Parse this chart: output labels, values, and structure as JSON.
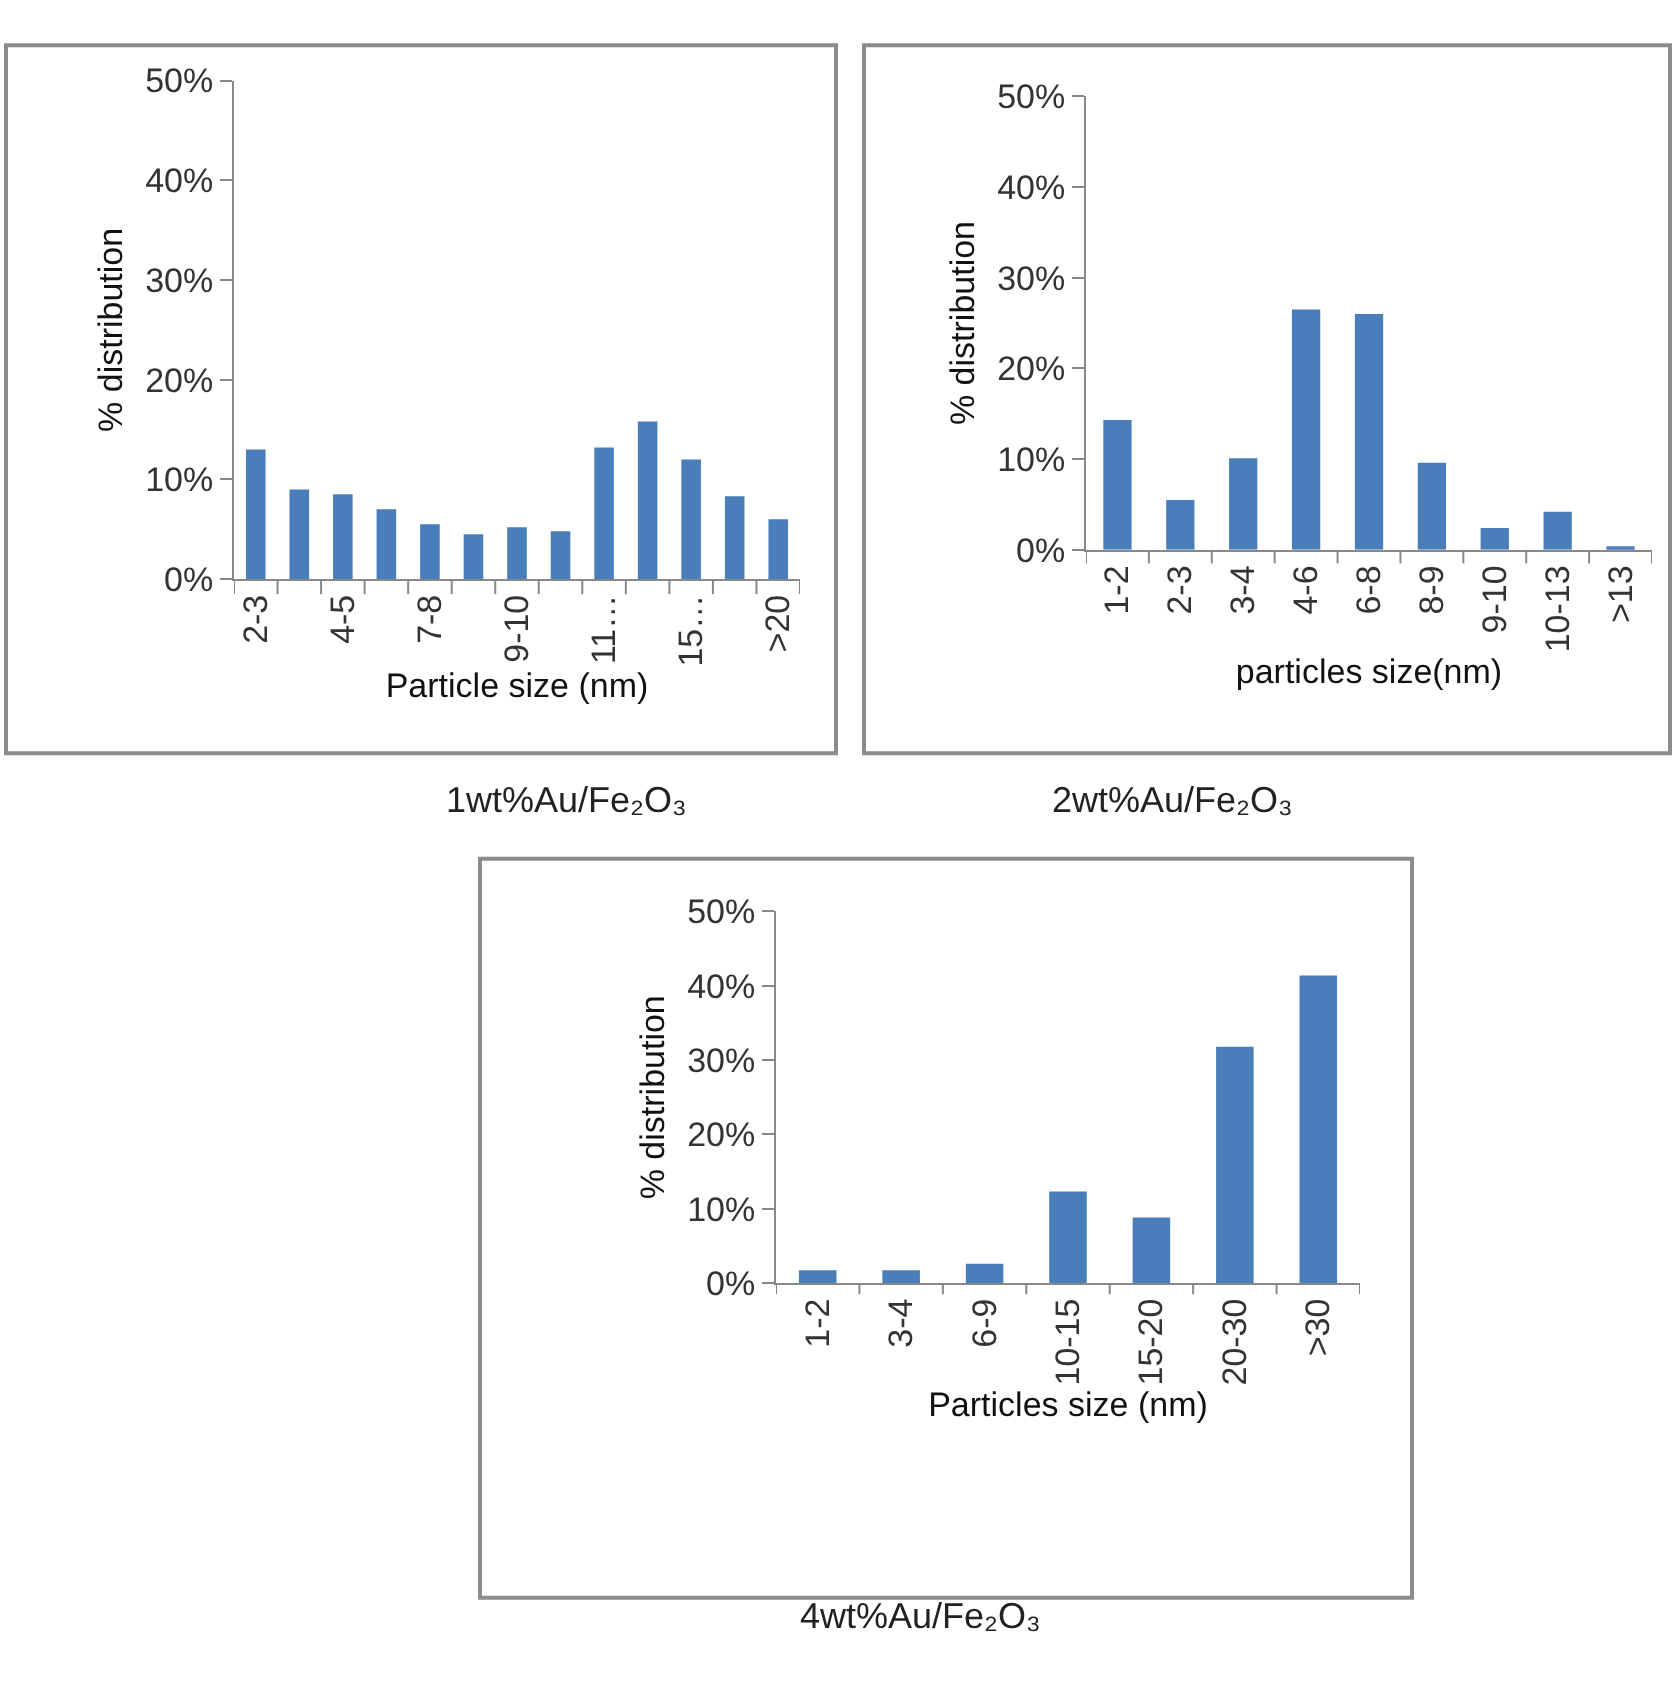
{
  "chart_data": [
    {
      "type": "bar",
      "xlabel": "Particle size (nm)",
      "ylabel": "% distribution",
      "categories": [
        "2-3",
        null,
        "4-5",
        null,
        "7-8",
        null,
        "9-10",
        null,
        "11…",
        null,
        "15…",
        null,
        ">20"
      ],
      "values": [
        13,
        9,
        8.5,
        7,
        5.5,
        4.5,
        5.2,
        4.8,
        13.2,
        15.8,
        12,
        8.3,
        6
      ],
      "color": "#4a7ebb",
      "ylim": [
        0,
        50
      ],
      "yticks": [
        {
          "value": 0,
          "label": "0%"
        },
        {
          "value": 10,
          "label": "10%"
        },
        {
          "value": 20,
          "label": "20%"
        },
        {
          "value": 30,
          "label": "30%"
        },
        {
          "value": 40,
          "label": "40%"
        },
        {
          "value": 50,
          "label": "50%"
        }
      ],
      "annotations": [
        "1wt%Au/Fe₂O₃"
      ]
    },
    {
      "type": "bar",
      "xlabel": "particles size(nm)",
      "ylabel": "% distribution",
      "categories": [
        "1-2",
        "2-3",
        "3-4",
        "4-6",
        "6-8",
        "8-9",
        "9-10",
        "10-13",
        ">13"
      ],
      "values": [
        14.3,
        5.5,
        10.1,
        26.5,
        26,
        9.6,
        2.4,
        4.2,
        0.3
      ],
      "color": "#4a7ebb",
      "ylim": [
        0,
        50
      ],
      "yticks": [
        {
          "value": 0,
          "label": "0%"
        },
        {
          "value": 10,
          "label": "10%"
        },
        {
          "value": 20,
          "label": "20%"
        },
        {
          "value": 30,
          "label": "30%"
        },
        {
          "value": 40,
          "label": "40%"
        },
        {
          "value": 50,
          "label": "50%"
        }
      ],
      "annotations": [
        "2wt%Au/Fe₂O₃"
      ]
    },
    {
      "type": "bar",
      "xlabel": "Particles size (nm)",
      "ylabel": "% distribution",
      "categories": [
        "1-2",
        "3-4",
        "6-9",
        "10-15",
        "15-20",
        "20-30",
        ">30"
      ],
      "values": [
        1.7,
        1.7,
        2.6,
        12.3,
        8.8,
        31.8,
        41.4
      ],
      "color": "#4a7ebb",
      "ylim": [
        0,
        50
      ],
      "yticks": [
        {
          "value": 0,
          "label": "0%"
        },
        {
          "value": 10,
          "label": "10%"
        },
        {
          "value": 20,
          "label": "20%"
        },
        {
          "value": 30,
          "label": "30%"
        },
        {
          "value": 40,
          "label": "40%"
        },
        {
          "value": 50,
          "label": "50%"
        }
      ],
      "annotations": [
        "4wt%Au/Fe₂O₃"
      ]
    }
  ]
}
